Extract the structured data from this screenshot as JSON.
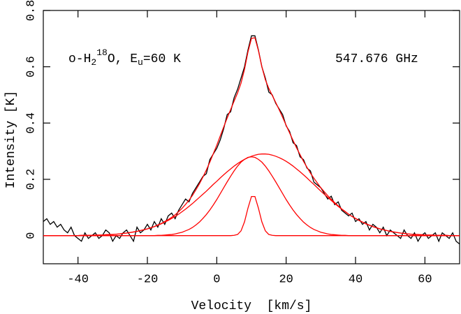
{
  "chart_data": {
    "type": "line",
    "species_label": {
      "parts": [
        "o-H",
        "2",
        "18",
        "O, E",
        "u",
        "=60 K"
      ]
    },
    "frequency_label": "547.676 GHz",
    "xlabel": "Velocity  [km/s]",
    "ylabel": "Intensity [K]",
    "xlim": [
      -50,
      70
    ],
    "ylim": [
      -0.1,
      0.8
    ],
    "xticks": [
      -40,
      -20,
      0,
      20,
      40,
      60
    ],
    "yticks": [
      0,
      0.2,
      0.4,
      0.6,
      0.8
    ],
    "grid": false,
    "x": [
      -50,
      -49,
      -48,
      -47,
      -46,
      -45,
      -44,
      -43,
      -42,
      -41,
      -40,
      -39,
      -38,
      -37,
      -36,
      -35,
      -34,
      -33,
      -32,
      -31,
      -30,
      -29,
      -28,
      -27,
      -26,
      -25,
      -24,
      -23,
      -22,
      -21,
      -20,
      -19,
      -18,
      -17,
      -16,
      -15,
      -14,
      -13,
      -12,
      -11,
      -10,
      -9,
      -8,
      -7,
      -6,
      -5,
      -4,
      -3,
      -2,
      -1,
      0,
      1,
      2,
      3,
      4,
      5,
      6,
      7,
      8,
      9,
      10,
      11,
      12,
      13,
      14,
      15,
      16,
      17,
      18,
      19,
      20,
      21,
      22,
      23,
      24,
      25,
      26,
      27,
      28,
      29,
      30,
      31,
      32,
      33,
      34,
      35,
      36,
      37,
      38,
      39,
      40,
      41,
      42,
      43,
      44,
      45,
      46,
      47,
      48,
      49,
      50,
      51,
      52,
      53,
      54,
      55,
      56,
      57,
      58,
      59,
      60,
      61,
      62,
      63,
      64,
      65,
      66,
      67,
      68,
      69,
      70
    ],
    "series": [
      {
        "color": "#000000",
        "values": [
          0.05,
          0.06,
          0.04,
          0.05,
          0.03,
          0.04,
          0.02,
          0.01,
          0.03,
          0.0,
          -0.01,
          -0.02,
          0.01,
          -0.01,
          0.0,
          0.01,
          -0.01,
          0.0,
          0.02,
          0.01,
          -0.02,
          0.0,
          -0.01,
          0.01,
          0.02,
          0.0,
          -0.02,
          0.03,
          0.01,
          0.02,
          0.04,
          0.02,
          0.05,
          0.03,
          0.06,
          0.04,
          0.07,
          0.08,
          0.06,
          0.09,
          0.11,
          0.13,
          0.12,
          0.15,
          0.17,
          0.19,
          0.21,
          0.22,
          0.27,
          0.29,
          0.31,
          0.34,
          0.38,
          0.43,
          0.44,
          0.49,
          0.52,
          0.56,
          0.6,
          0.66,
          0.71,
          0.71,
          0.66,
          0.6,
          0.56,
          0.51,
          0.5,
          0.47,
          0.45,
          0.43,
          0.39,
          0.37,
          0.33,
          0.32,
          0.28,
          0.27,
          0.24,
          0.23,
          0.19,
          0.18,
          0.17,
          0.15,
          0.13,
          0.14,
          0.11,
          0.12,
          0.09,
          0.08,
          0.07,
          0.08,
          0.05,
          0.06,
          0.04,
          0.05,
          0.02,
          0.04,
          0.03,
          0.01,
          0.03,
          0.0,
          0.02,
          0.01,
          0.0,
          -0.01,
          0.02,
          0.0,
          -0.01,
          0.01,
          -0.02,
          0.0,
          0.01,
          -0.01,
          0.0,
          0.01,
          -0.02,
          0.01,
          0.0,
          -0.01,
          0.01,
          -0.02,
          -0.03
        ]
      },
      {
        "color": "#ff0000",
        "values": [
          0,
          0,
          0,
          0,
          0,
          0,
          0,
          0,
          0,
          0,
          0,
          0.001,
          0.001,
          0.001,
          0.001,
          0.002,
          0.002,
          0.002,
          0.003,
          0.004,
          0.004,
          0.005,
          0.006,
          0.008,
          0.009,
          0.011,
          0.013,
          0.015,
          0.018,
          0.021,
          0.024,
          0.028,
          0.032,
          0.038,
          0.043,
          0.05,
          0.057,
          0.065,
          0.074,
          0.085,
          0.097,
          0.111,
          0.126,
          0.143,
          0.163,
          0.184,
          0.208,
          0.233,
          0.261,
          0.291,
          0.321,
          0.354,
          0.386,
          0.418,
          0.448,
          0.478,
          0.507,
          0.542,
          0.591,
          0.653,
          0.701,
          0.703,
          0.658,
          0.6,
          0.554,
          0.523,
          0.498,
          0.473,
          0.447,
          0.42,
          0.392,
          0.365,
          0.338,
          0.312,
          0.288,
          0.264,
          0.243,
          0.222,
          0.204,
          0.187,
          0.17,
          0.156,
          0.142,
          0.129,
          0.117,
          0.106,
          0.095,
          0.086,
          0.076,
          0.068,
          0.061,
          0.054,
          0.048,
          0.042,
          0.037,
          0.032,
          0.028,
          0.024,
          0.021,
          0.018,
          0.015,
          0.013,
          0.011,
          0.009,
          0.008,
          0.006,
          0.005,
          0.004,
          0.004,
          0.003,
          0.002,
          0.002,
          0.002,
          0.001,
          0.001,
          0.001,
          0.001,
          0,
          0,
          0,
          0
        ]
      },
      {
        "color": "#ff0000",
        "values": [
          0,
          0,
          0,
          0,
          0,
          0,
          0,
          0,
          0,
          0,
          0,
          0.001,
          0.001,
          0.001,
          0.001,
          0.002,
          0.002,
          0.002,
          0.003,
          0.004,
          0.004,
          0.005,
          0.006,
          0.008,
          0.009,
          0.011,
          0.013,
          0.015,
          0.018,
          0.021,
          0.024,
          0.028,
          0.032,
          0.037,
          0.042,
          0.048,
          0.054,
          0.061,
          0.068,
          0.076,
          0.085,
          0.094,
          0.104,
          0.114,
          0.125,
          0.136,
          0.147,
          0.158,
          0.17,
          0.182,
          0.193,
          0.205,
          0.216,
          0.227,
          0.237,
          0.247,
          0.256,
          0.264,
          0.271,
          0.277,
          0.282,
          0.286,
          0.289,
          0.29,
          0.29,
          0.289,
          0.286,
          0.282,
          0.277,
          0.271,
          0.264,
          0.256,
          0.247,
          0.237,
          0.227,
          0.216,
          0.205,
          0.193,
          0.182,
          0.17,
          0.158,
          0.147,
          0.136,
          0.125,
          0.114,
          0.104,
          0.094,
          0.085,
          0.076,
          0.068,
          0.061,
          0.054,
          0.048,
          0.042,
          0.037,
          0.032,
          0.028,
          0.024,
          0.021,
          0.018,
          0.015,
          0.013,
          0.011,
          0.009,
          0.008,
          0.006,
          0.005,
          0.004,
          0.004,
          0.003,
          0.002,
          0.002,
          0.002,
          0.001,
          0.001,
          0.001,
          0.001,
          0,
          0,
          0,
          0
        ]
      },
      {
        "color": "#ff0000",
        "values": [
          0,
          0,
          0,
          0,
          0,
          0,
          0,
          0,
          0,
          0,
          0,
          0,
          0,
          0,
          0,
          0,
          0,
          0,
          0,
          0,
          0,
          0,
          0,
          0,
          0,
          0,
          0,
          0,
          0,
          0,
          0,
          0,
          0,
          0.001,
          0.001,
          0.002,
          0.003,
          0.004,
          0.006,
          0.009,
          0.012,
          0.017,
          0.022,
          0.029,
          0.038,
          0.048,
          0.061,
          0.075,
          0.091,
          0.109,
          0.128,
          0.149,
          0.17,
          0.191,
          0.211,
          0.23,
          0.247,
          0.261,
          0.271,
          0.278,
          0.28,
          0.278,
          0.271,
          0.261,
          0.247,
          0.23,
          0.211,
          0.191,
          0.17,
          0.149,
          0.128,
          0.109,
          0.091,
          0.075,
          0.061,
          0.048,
          0.038,
          0.029,
          0.022,
          0.017,
          0.012,
          0.009,
          0.006,
          0.004,
          0.003,
          0.002,
          0.001,
          0.001,
          0,
          0,
          0,
          0,
          0,
          0,
          0,
          0,
          0,
          0,
          0,
          0,
          0,
          0,
          0,
          0,
          0,
          0,
          0,
          0,
          0,
          0,
          0,
          0,
          0,
          0,
          0,
          0,
          0,
          0,
          0,
          0,
          0
        ]
      },
      {
        "color": "#ff0000",
        "values": [
          0,
          0,
          0,
          0,
          0,
          0,
          0,
          0,
          0,
          0,
          0,
          0,
          0,
          0,
          0,
          0,
          0,
          0,
          0,
          0,
          0,
          0,
          0,
          0,
          0,
          0,
          0,
          0,
          0,
          0,
          0,
          0,
          0,
          0,
          0,
          0,
          0,
          0,
          0,
          0,
          0,
          0,
          0,
          0,
          0,
          0,
          0,
          0,
          0,
          0,
          0,
          0,
          0,
          0,
          0,
          0.001,
          0.004,
          0.017,
          0.049,
          0.098,
          0.139,
          0.139,
          0.098,
          0.049,
          0.017,
          0.004,
          0.001,
          0,
          0,
          0,
          0,
          0,
          0,
          0,
          0,
          0,
          0,
          0,
          0,
          0,
          0,
          0,
          0,
          0,
          0,
          0,
          0,
          0,
          0,
          0,
          0,
          0,
          0,
          0,
          0,
          0,
          0,
          0,
          0,
          0,
          0,
          0,
          0,
          0,
          0,
          0,
          0,
          0,
          0,
          0,
          0,
          0,
          0,
          0,
          0,
          0,
          0,
          0,
          0,
          0,
          0
        ]
      }
    ]
  }
}
